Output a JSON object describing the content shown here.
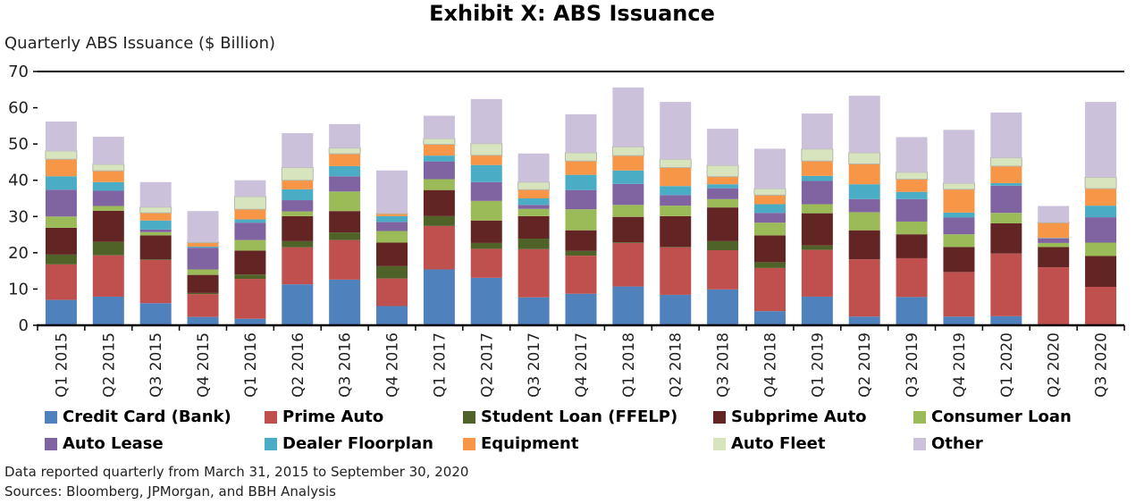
{
  "chart_data": {
    "type": "bar",
    "stacked": true,
    "title": "Exhibit X: ABS Issuance",
    "ylabel": "Quarterly ABS Issuance ($ Billion)",
    "xlabel": "",
    "ylim": [
      0,
      70
    ],
    "yticks": [
      0,
      10,
      20,
      30,
      40,
      50,
      60,
      70
    ],
    "grid": false,
    "legend_position": "bottom",
    "categories": [
      "Q1 2015",
      "Q2 2015",
      "Q3 2015",
      "Q4 2015",
      "Q1 2016",
      "Q2 2016",
      "Q3 2016",
      "Q4 2016",
      "Q1 2017",
      "Q2 2017",
      "Q3 2017",
      "Q4 2017",
      "Q1 2018",
      "Q2 2018",
      "Q3 2018",
      "Q4 2018",
      "Q1 2019",
      "Q2 2019",
      "Q3 2019",
      "Q4 2019",
      "Q1 2020",
      "Q2 2020",
      "Q3 2020"
    ],
    "series": [
      {
        "name": "Credit Card (Bank)",
        "color": "#4F81BD",
        "values": [
          7.0,
          7.9,
          6.1,
          2.3,
          1.8,
          11.3,
          12.6,
          5.3,
          15.4,
          13.1,
          7.7,
          8.7,
          10.7,
          8.4,
          9.9,
          3.9,
          7.9,
          2.4,
          7.8,
          2.4,
          2.5,
          0,
          0
        ]
      },
      {
        "name": "Prime Auto",
        "color": "#C0504D",
        "values": [
          9.8,
          11.4,
          11.9,
          6.3,
          11.0,
          10.2,
          10.9,
          7.6,
          12.0,
          8.0,
          13.3,
          10.5,
          12.0,
          13.1,
          10.8,
          11.9,
          12.9,
          15.8,
          10.7,
          12.3,
          17.3,
          16.0,
          10.6
        ]
      },
      {
        "name": "Student Loan (FFELP)",
        "color": "#4F6228",
        "values": [
          2.7,
          3.7,
          0.2,
          0.3,
          1.2,
          1.7,
          2.1,
          3.4,
          2.7,
          1.6,
          2.9,
          1.3,
          0.2,
          0.1,
          2.5,
          1.6,
          1.2,
          0,
          0,
          0,
          0,
          0,
          0
        ]
      },
      {
        "name": "Subprime Auto",
        "color": "#632523",
        "values": [
          7.4,
          8.6,
          6.6,
          5.0,
          6.6,
          6.9,
          5.9,
          6.5,
          7.2,
          6.2,
          6.2,
          5.7,
          7.0,
          8.5,
          9.3,
          7.4,
          8.9,
          8.0,
          6.6,
          6.9,
          8.3,
          5.6,
          8.5
        ]
      },
      {
        "name": "Consumer Loan",
        "color": "#9BBB59",
        "values": [
          3.1,
          1.3,
          0.9,
          1.5,
          2.9,
          1.3,
          5.4,
          3.2,
          3.0,
          5.4,
          2.0,
          5.8,
          3.3,
          2.9,
          2.3,
          3.5,
          2.5,
          5.0,
          3.5,
          3.5,
          2.9,
          1.1,
          3.7
        ]
      },
      {
        "name": "Auto Lease",
        "color": "#8064A2",
        "values": [
          7.4,
          4.2,
          0.7,
          6.0,
          4.8,
          3.1,
          4.2,
          2.5,
          4.9,
          5.2,
          1.1,
          5.3,
          5.8,
          2.9,
          3.0,
          2.7,
          6.4,
          3.6,
          6.2,
          4.6,
          7.5,
          1.3,
          7.0
        ]
      },
      {
        "name": "Dealer Floorplan",
        "color": "#4BACC6",
        "values": [
          3.7,
          2.4,
          2.5,
          0.3,
          0.9,
          3.0,
          2.8,
          1.6,
          1.6,
          4.7,
          1.8,
          4.2,
          3.7,
          2.5,
          1.1,
          2.4,
          1.4,
          4.1,
          2.0,
          1.4,
          0.7,
          0.1,
          3.2
        ]
      },
      {
        "name": "Equipment",
        "color": "#F79646",
        "values": [
          4.7,
          3.1,
          2.1,
          1.1,
          2.8,
          2.5,
          3.4,
          0.7,
          3.1,
          2.7,
          2.4,
          3.8,
          4.1,
          5.1,
          2.1,
          2.5,
          4.1,
          5.6,
          3.5,
          6.4,
          4.7,
          4.2,
          4.7
        ]
      },
      {
        "name": "Auto Fleet",
        "color": "#D7E4BD",
        "values": [
          2.3,
          1.8,
          1.6,
          0.1,
          3.5,
          3.5,
          1.6,
          0.1,
          1.6,
          3.2,
          2.1,
          2.3,
          2.4,
          2.3,
          3.1,
          1.8,
          3.3,
          3.1,
          1.9,
          1.7,
          2.3,
          0.1,
          3.1
        ]
      },
      {
        "name": "Other",
        "color": "#CCC1DA",
        "values": [
          8.1,
          7.6,
          6.9,
          8.6,
          4.5,
          9.5,
          6.6,
          11.8,
          6.3,
          12.3,
          7.9,
          10.6,
          16.4,
          15.8,
          10.1,
          11.0,
          9.8,
          15.7,
          9.7,
          14.7,
          12.5,
          4.5,
          20.8
        ]
      }
    ]
  },
  "notes": {
    "line1": "Data reported quarterly from March 31, 2015 to September 30, 2020",
    "line2": "Sources: Bloomberg, JPMorgan, and BBH Analysis"
  }
}
